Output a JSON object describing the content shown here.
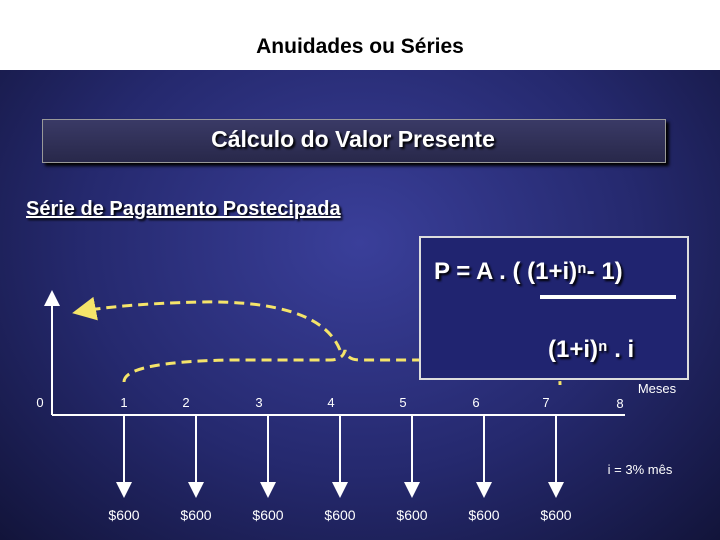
{
  "header": {
    "title": "Anuidades ou Séries"
  },
  "box": {
    "title": "Cálculo do Valor Presente"
  },
  "subtitle": "Série de Pagamento Postecipada",
  "formula": {
    "numerator": "P = A . ( (1+i)ⁿ- 1)",
    "denominator": "(1+i)ⁿ . i"
  },
  "timeline": {
    "periods": [
      "0",
      "1",
      "2",
      "3",
      "4",
      "5",
      "6",
      "7",
      "8"
    ],
    "unit": "Meses",
    "rate": "i = 3% mês",
    "payments": [
      "$600",
      "$600",
      "$600",
      "$600",
      "$600",
      "$600",
      "$600"
    ]
  }
}
